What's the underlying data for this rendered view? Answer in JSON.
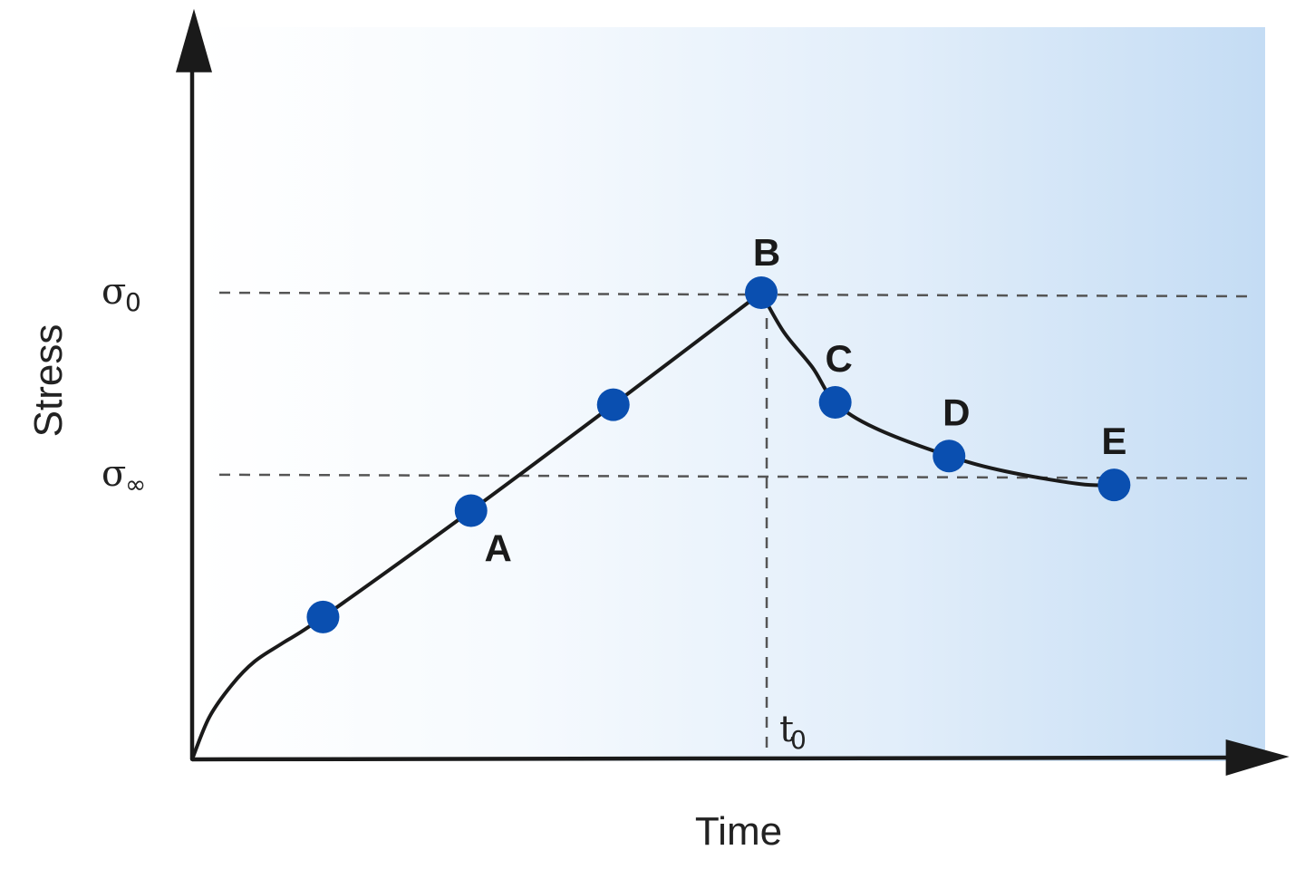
{
  "colors": {
    "point": "#0a4fb0",
    "curve": "#1a1a1a",
    "background_gradient_start": "#ffffff",
    "background_gradient_end": "#c4dcf4"
  },
  "chart_data": {
    "type": "line",
    "title": "",
    "xlabel": "Time",
    "ylabel": "Stress",
    "y_ticks": [
      {
        "symbol": "σ",
        "sub": "0",
        "value": 1.0
      },
      {
        "symbol": "σ",
        "sub": "∞",
        "value": 0.61
      }
    ],
    "x_ticks": [
      {
        "symbol": "t",
        "sub": "0",
        "value": 1.0
      }
    ],
    "xlim": [
      0,
      1.88
    ],
    "ylim": [
      0,
      1.55
    ],
    "grid": false,
    "series": [
      {
        "curve": [
          [
            0.0,
            0.0
          ],
          [
            0.03,
            0.09
          ],
          [
            0.07,
            0.16
          ],
          [
            0.11,
            0.21
          ],
          [
            0.16,
            0.25
          ],
          [
            0.23,
            0.305
          ],
          [
            0.49,
            0.533
          ],
          [
            0.74,
            0.76
          ],
          [
            1.0,
            1.0
          ],
          [
            1.04,
            0.915
          ],
          [
            1.09,
            0.84
          ],
          [
            1.13,
            0.765
          ],
          [
            1.2,
            0.71
          ],
          [
            1.33,
            0.65
          ],
          [
            1.43,
            0.617
          ],
          [
            1.56,
            0.59
          ],
          [
            1.62,
            0.588
          ]
        ],
        "points": [
          {
            "label": "",
            "x": 0.23,
            "y": 0.305
          },
          {
            "label": "A",
            "x": 0.49,
            "y": 0.533
          },
          {
            "label": "",
            "x": 0.74,
            "y": 0.76
          },
          {
            "label": "B",
            "x": 1.0,
            "y": 1.0
          },
          {
            "label": "C",
            "x": 1.13,
            "y": 0.765
          },
          {
            "label": "D",
            "x": 1.33,
            "y": 0.65
          },
          {
            "label": "E",
            "x": 1.62,
            "y": 0.588
          }
        ]
      }
    ]
  }
}
